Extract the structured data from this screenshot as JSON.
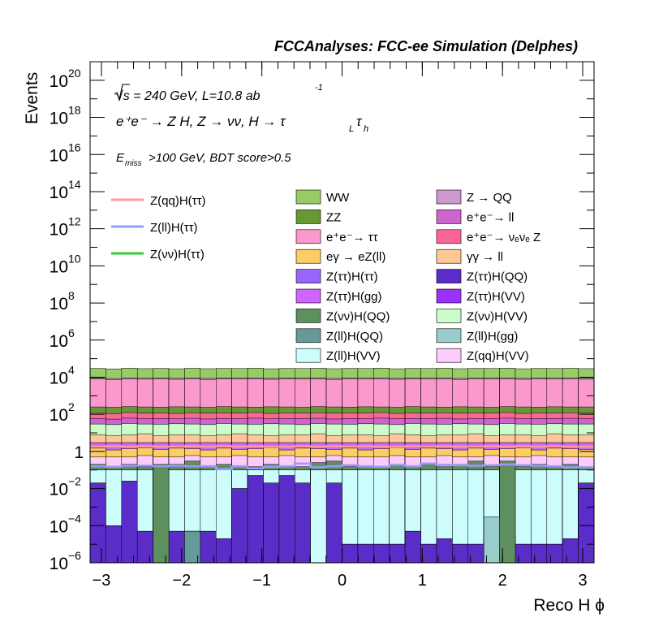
{
  "header": "FCCAnalyses: FCC-ee Simulation (Delphes)",
  "annotations": {
    "energy": "√s = 240 GeV, L=10.8 ab",
    "energy_exp": "-1",
    "process": "e⁺e⁻ → Z H, Z → νν, H → τ_L τ_h",
    "process_main": "e⁺e⁻ → Z H, Z  → νν, H → τ",
    "sub_L": "L",
    "tau2": "τ",
    "sub_h": "h",
    "cuts_pre": "E",
    "cuts_sub": "miss",
    "cuts_post": ">100 GeV, BDT score>0.5"
  },
  "chart_data": {
    "type": "area",
    "xlabel": "Reco H ϕ",
    "ylabel": "Events",
    "log_y": true,
    "xlim": [
      -3.1416,
      3.1416
    ],
    "ylim": [
      1e-06,
      1e+21
    ],
    "x_ticks": [
      -3,
      -2,
      -1,
      0,
      1,
      2,
      3
    ],
    "x_tick_labels": [
      "−3",
      "−2",
      "−1",
      "0",
      "1",
      "2",
      "3"
    ],
    "y_ticks": [
      {
        "base": "10",
        "exp": "−6",
        "val": 1e-06
      },
      {
        "base": "10",
        "exp": "−4",
        "val": 0.0001
      },
      {
        "base": "10",
        "exp": "−2",
        "val": 0.01
      },
      {
        "base": "1",
        "exp": "",
        "val": 1
      },
      {
        "base": "10",
        "exp": "2",
        "val": 100.0
      },
      {
        "base": "10",
        "exp": "4",
        "val": 10000.0
      },
      {
        "base": "10",
        "exp": "6",
        "val": 1000000.0
      },
      {
        "base": "10",
        "exp": "8",
        "val": 100000000.0
      },
      {
        "base": "10",
        "exp": "10",
        "val": 10000000000.0
      },
      {
        "base": "10",
        "exp": "12",
        "val": 1000000000000.0
      },
      {
        "base": "10",
        "exp": "14",
        "val": 100000000000000.0
      },
      {
        "base": "10",
        "exp": "16",
        "val": 1e+16
      },
      {
        "base": "10",
        "exp": "18",
        "val": 1e+18
      },
      {
        "base": "10",
        "exp": "20",
        "val": 1e+20
      }
    ],
    "n_bins": 32,
    "legend_placement": "top",
    "stacked_layers": [
      {
        "name": "Z(ττ)H(QQ) (bottom)",
        "color": "#5a2dc8",
        "upper": [
          0.02,
          0.0001,
          0.025,
          5e-05,
          0.0001,
          5e-05,
          5e-05,
          5e-05,
          2e-05,
          0.01,
          0.05,
          0.02,
          0.05,
          0.02,
          5e-05,
          0.02,
          1e-05,
          1e-05,
          1e-05,
          1e-05,
          5e-05,
          1e-05,
          2e-05,
          1e-05,
          1e-05,
          1e-05,
          3e-05,
          1e-05,
          1e-05,
          1e-05,
          2e-05,
          0.02
        ]
      },
      {
        "name": "Z(ll)H(VV)",
        "color": "#ccfcfc",
        "upper": [
          0.1,
          0.1,
          0.1,
          0.1,
          0.1,
          0.1,
          0.1,
          0.1,
          0.1,
          0.1,
          0.1,
          0.1,
          0.1,
          0.1,
          0.1,
          0.1,
          0.1,
          0.1,
          0.1,
          0.1,
          0.1,
          0.1,
          0.1,
          0.1,
          0.1,
          0.1,
          0.1,
          0.1,
          0.1,
          0.1,
          0.1,
          0.1
        ]
      },
      {
        "name": "Z(νν)H(QQ)",
        "color": "#5e8f5e",
        "upper": [
          0.2,
          0.15,
          0.2,
          0.15,
          0.15,
          0.2,
          0.3,
          0.15,
          0.2,
          0.15,
          0.15,
          0.2,
          0.15,
          0.15,
          0.25,
          0.3,
          0.15,
          0.15,
          0.15,
          0.2,
          0.15,
          0.2,
          0.15,
          0.2,
          0.3,
          0.15,
          0.2,
          0.15,
          0.2,
          0.15,
          0.2,
          0.15
        ]
      },
      {
        "name": "Z(qq)H(VV)",
        "color": "#fcccfc",
        "upper": [
          0.5,
          0.5,
          0.5,
          0.6,
          0.5,
          0.5,
          0.6,
          0.5,
          0.5,
          0.6,
          0.5,
          0.5,
          0.6,
          0.5,
          0.5,
          0.6,
          0.5,
          0.5,
          0.5,
          0.6,
          0.5,
          0.5,
          0.6,
          0.5,
          0.5,
          0.6,
          0.5,
          0.5,
          0.6,
          0.5,
          0.5,
          0.5
        ]
      },
      {
        "name": "eγ → eZ(ll)",
        "color": "#fccc66",
        "upper": [
          1.5,
          1.2,
          1.4,
          1.6,
          1.3,
          1.5,
          1.4,
          1.2,
          1.5,
          1.3,
          1.4,
          1.6,
          1.2,
          1.5,
          1.4,
          1.3,
          1.5,
          1.2,
          1.4,
          1.6,
          1.3,
          1.5,
          1.4,
          1.2,
          1.5,
          1.3,
          1.4,
          1.6,
          1.2,
          1.5,
          1.4,
          1.3
        ]
      },
      {
        "name": "Z(ττ)H(gg)",
        "color": "#cc66fc",
        "upper": [
          3,
          3,
          3,
          3,
          3,
          3,
          3,
          3,
          3,
          3,
          3,
          3,
          3,
          3,
          3,
          3,
          3,
          3,
          3,
          3,
          3,
          3,
          3,
          3,
          3,
          3,
          3,
          3,
          3,
          3,
          3,
          3
        ]
      },
      {
        "name": "γγ → ll",
        "color": "#fcc896",
        "upper": [
          8,
          7,
          8,
          9,
          7,
          8,
          8,
          7,
          8,
          9,
          8,
          7,
          8,
          8,
          9,
          7,
          8,
          8,
          7,
          9,
          8,
          7,
          8,
          8,
          9,
          7,
          8,
          8,
          7,
          9,
          8,
          8
        ]
      },
      {
        "name": "Z(νν)H(VV)",
        "color": "#ccfccc",
        "upper": [
          30,
          28,
          32,
          30,
          29,
          31,
          30,
          28,
          32,
          30,
          29,
          31,
          30,
          28,
          32,
          30,
          29,
          31,
          30,
          28,
          32,
          30,
          29,
          31,
          30,
          28,
          32,
          30,
          29,
          31,
          30,
          30
        ]
      },
      {
        "name": "e⁺e⁻ → ll",
        "color": "#cc66cc",
        "upper": [
          60,
          55,
          62,
          58,
          60,
          57,
          61,
          56,
          60,
          58,
          62,
          57,
          60,
          59,
          61,
          56,
          60,
          58,
          62,
          57,
          60,
          59,
          61,
          56,
          60,
          58,
          62,
          57,
          60,
          59,
          61,
          58
        ]
      },
      {
        "name": "e⁺e⁻ → νeνe Z",
        "color": "#fc6696",
        "upper": [
          120,
          110,
          125,
          115,
          120,
          112,
          122,
          116,
          120,
          118,
          125,
          112,
          120,
          118,
          122,
          115,
          120,
          118,
          125,
          112,
          120,
          118,
          122,
          115,
          120,
          118,
          125,
          112,
          120,
          118,
          122,
          118
        ]
      },
      {
        "name": "ZZ",
        "color": "#669933",
        "upper": [
          250,
          240,
          260,
          250,
          245,
          255,
          250,
          240,
          260,
          250,
          245,
          255,
          250,
          240,
          260,
          250,
          245,
          255,
          250,
          240,
          260,
          250,
          245,
          255,
          250,
          240,
          260,
          250,
          245,
          255,
          250,
          250
        ]
      },
      {
        "name": "e⁺e⁻ → ττ",
        "color": "#fc99cc",
        "upper": [
          8000,
          7500,
          8200,
          7800,
          8000,
          7700,
          8100,
          7600,
          8000,
          7900,
          8200,
          7700,
          8000,
          7900,
          8100,
          7600,
          8000,
          7900,
          8200,
          7700,
          8000,
          7900,
          8100,
          7600,
          8000,
          7900,
          8200,
          7700,
          8000,
          7900,
          8100,
          7800
        ]
      },
      {
        "name": "Z → QQ",
        "color": "#cc99cc",
        "upper": [
          9000,
          8500,
          9200,
          8800,
          9000,
          8700,
          9100,
          8600,
          9000,
          8900,
          9200,
          8700,
          9000,
          8900,
          9100,
          8600,
          9000,
          8900,
          9200,
          8700,
          9000,
          8900,
          9100,
          8600,
          9000,
          8900,
          9200,
          8700,
          9000,
          8900,
          9100,
          8800
        ]
      },
      {
        "name": "WW (top)",
        "color": "#99cc66",
        "upper": [
          30000,
          28000,
          31000,
          29000,
          30000,
          28500,
          30500,
          28800,
          30000,
          29500,
          31000,
          28500,
          30000,
          29500,
          30500,
          28800,
          30000,
          29500,
          31000,
          28500,
          30000,
          29500,
          30500,
          28800,
          30000,
          29500,
          31000,
          28500,
          30000,
          29500,
          30500,
          29000
        ]
      }
    ],
    "bin_overlays": [
      {
        "bin": 4,
        "upper": 0.2,
        "color": "#5e8f5e"
      },
      {
        "bin": 6,
        "upper": 5e-05,
        "color": "#669999"
      },
      {
        "bin": 14,
        "upper": 0.1,
        "color": "#ccfcfc"
      },
      {
        "bin": 25,
        "upper": 0.0003,
        "color": "#99cccc"
      },
      {
        "bin": 26,
        "upper": 0.3,
        "color": "#5e8f5e"
      }
    ],
    "signal_lines": [
      {
        "name": "Z(qq)H(ττ)",
        "color": "#fc9999",
        "values": [
          1.8,
          1.9,
          1.8,
          1.9,
          1.8,
          1.8,
          1.9,
          1.8,
          1.9,
          1.8,
          1.9,
          1.8,
          1.8,
          1.9,
          1.8,
          1.9,
          1.8,
          1.9,
          1.8,
          1.8,
          1.9,
          1.8,
          1.9,
          1.8,
          1.8,
          1.9,
          1.8,
          1.9,
          1.8,
          1.9,
          1.8,
          1.8
        ]
      },
      {
        "name": "Z(ll)H(ττ)",
        "color": "#9999fc",
        "values": [
          0.16,
          0.15,
          0.17,
          0.17,
          0.16,
          0.17,
          0.16,
          0.16,
          0.11,
          0.16,
          0.12,
          0.15,
          0.16,
          0.22,
          0.14,
          0.16,
          0.18,
          0.16,
          0.15,
          0.19,
          0.16,
          0.22,
          0.19,
          0.18,
          0.17,
          0.18,
          0.2,
          0.18,
          0.17,
          0.16,
          0.14,
          0.14
        ]
      },
      {
        "name": "Z(νν)H(ττ)",
        "color": "#33cc33",
        "values": []
      }
    ],
    "legend_signals": [
      {
        "name": "Z(qq)H(ττ)",
        "color": "#fc9999"
      },
      {
        "name": "Z(ll)H(ττ)",
        "color": "#9999fc"
      },
      {
        "name": "Z(νν)H(ττ)",
        "color": "#33cc33"
      }
    ],
    "legend_backgrounds": [
      {
        "name": "WW",
        "color": "#99cc66"
      },
      {
        "name": "Z → QQ",
        "color": "#cc99cc"
      },
      {
        "name": "ZZ",
        "color": "#669933"
      },
      {
        "name": "e⁺e⁻→ ll",
        "color": "#cc66cc"
      },
      {
        "name": "e⁺e⁻→ ττ",
        "color": "#fc99cc"
      },
      {
        "name": "e⁺e⁻→ νₑνₑ Z",
        "color": "#fc6696"
      },
      {
        "name": "eγ → eZ(ll)",
        "color": "#fccc66"
      },
      {
        "name": "γγ → ll",
        "color": "#fcc896"
      },
      {
        "name": "Z(ττ)H(ττ)",
        "color": "#9966fc"
      },
      {
        "name": "Z(ττ)H(QQ)",
        "color": "#5a2dc8"
      },
      {
        "name": "Z(ττ)H(gg)",
        "color": "#cc66fc"
      },
      {
        "name": "Z(ττ)H(VV)",
        "color": "#9933fc"
      },
      {
        "name": "Z(νν)H(QQ)",
        "color": "#5e8f5e"
      },
      {
        "name": "Z(νν)H(VV)",
        "color": "#ccfccc"
      },
      {
        "name": "Z(ll)H(QQ)",
        "color": "#669999"
      },
      {
        "name": "Z(ll)H(gg)",
        "color": "#99cccc"
      },
      {
        "name": "Z(ll)H(VV)",
        "color": "#ccfcfc"
      },
      {
        "name": "Z(qq)H(VV)",
        "color": "#fcccfc"
      }
    ]
  }
}
